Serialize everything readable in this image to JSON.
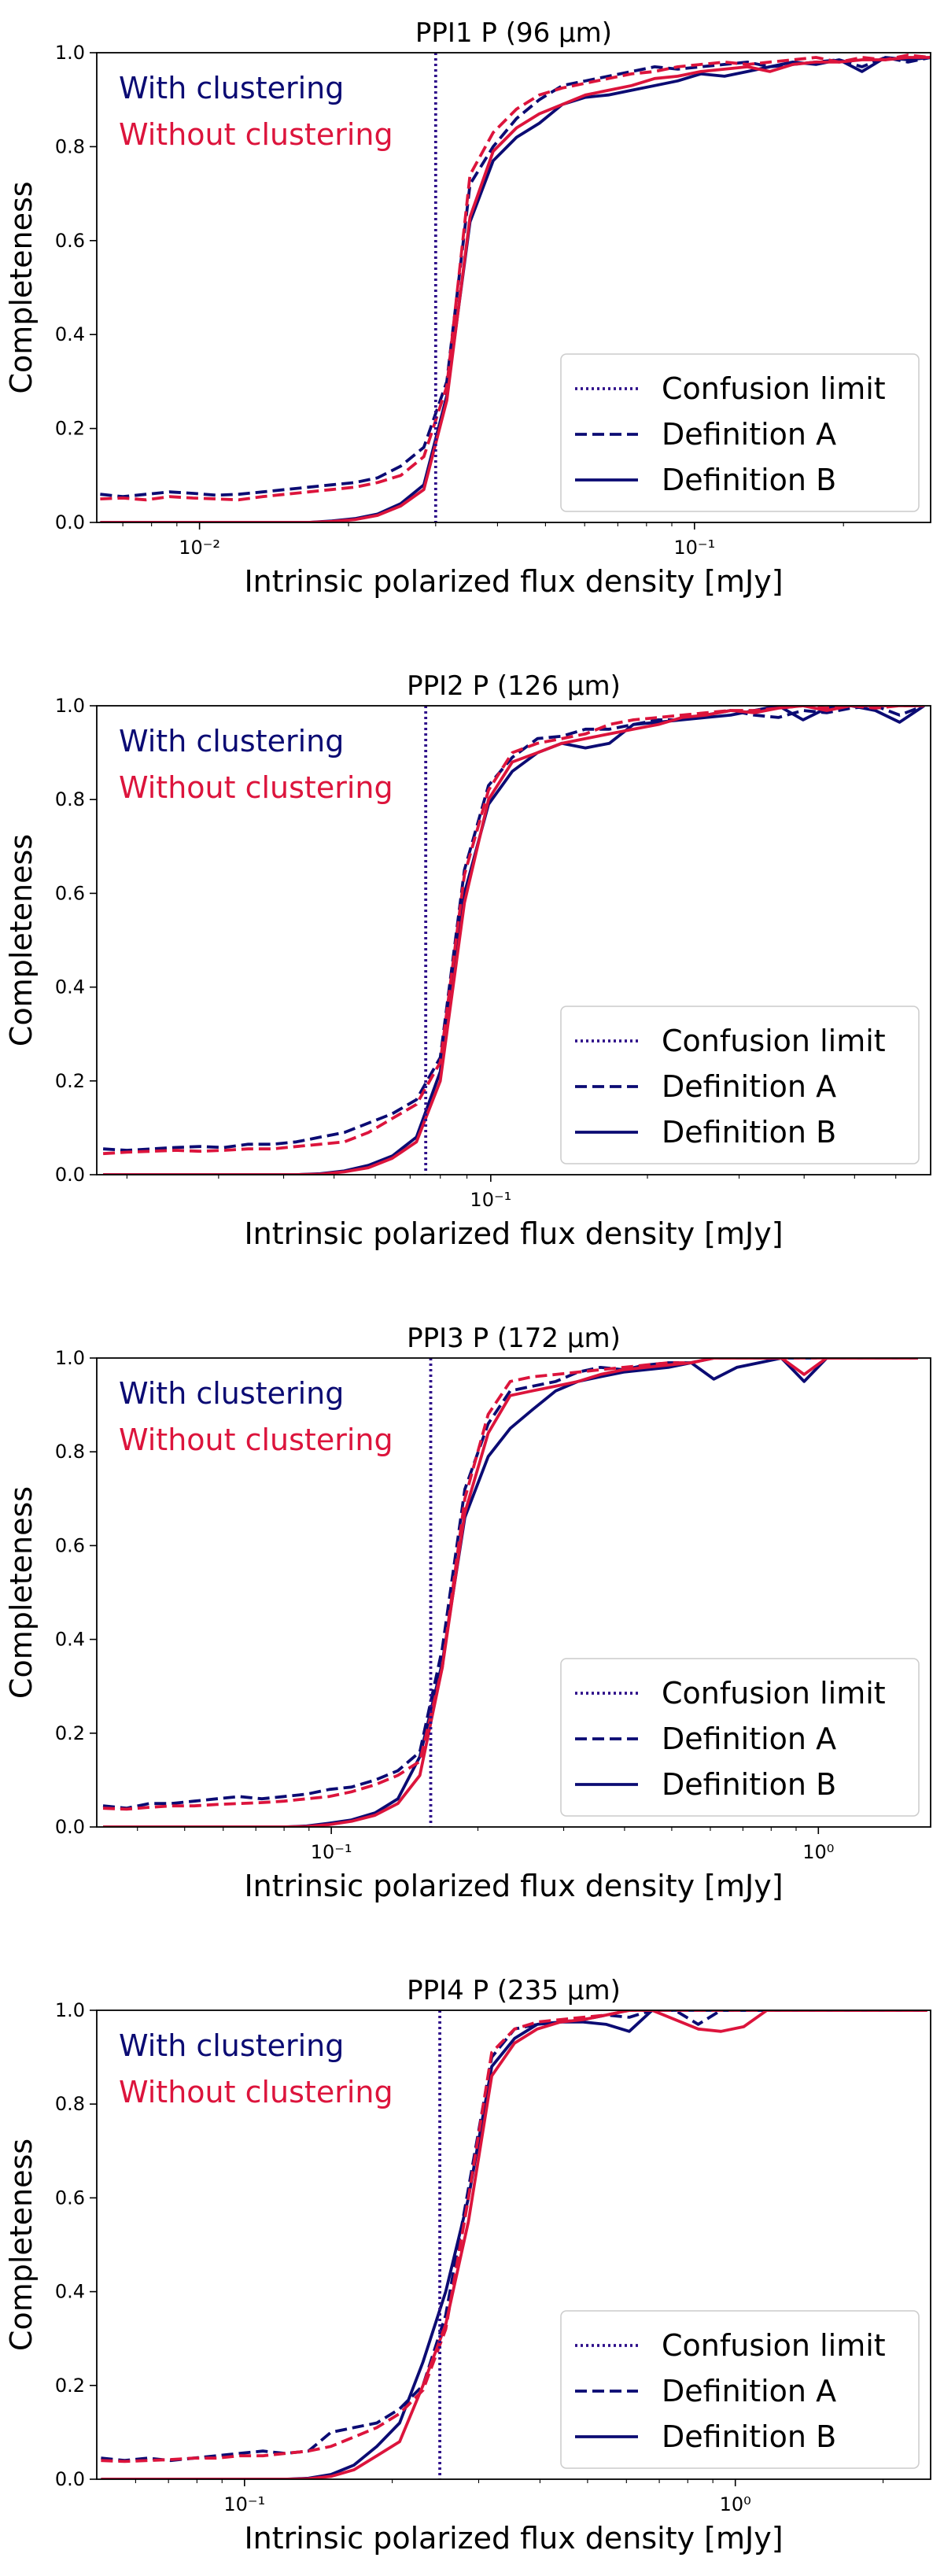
{
  "colors": {
    "with_clustering": "#0b0b73",
    "without_clustering": "#dc143c",
    "confusion_limit": "#2e0f8a"
  },
  "chart_data": [
    {
      "type": "line",
      "title": "PPI1 P (96 μm)",
      "xlabel": "Intrinsic polarized flux density [mJy]",
      "ylabel": "Completeness",
      "xscale": "log",
      "xlim": [
        0.0062,
        0.3
      ],
      "ylim": [
        0,
        1
      ],
      "yticks": [
        "0.0",
        "0.2",
        "0.4",
        "0.6",
        "0.8",
        "1.0"
      ],
      "xticks": [
        {
          "value": 0.01,
          "label": "10⁻²"
        },
        {
          "value": 0.1,
          "label": "10⁻¹"
        }
      ],
      "confusion_limit": 0.03,
      "annotations": [
        "With clustering",
        "Without clustering"
      ],
      "legend": [
        "Confusion limit",
        "Definition A",
        "Definition B"
      ],
      "x": [
        0.0063,
        0.007,
        0.0078,
        0.0087,
        0.0097,
        0.0108,
        0.012,
        0.0134,
        0.0149,
        0.0166,
        0.0185,
        0.0206,
        0.0229,
        0.0255,
        0.0284,
        0.0316,
        0.0352,
        0.0392,
        0.0437,
        0.0486,
        0.0541,
        0.0602,
        0.067,
        0.0746,
        0.0831,
        0.0925,
        0.103,
        0.115,
        0.128,
        0.142,
        0.158,
        0.176,
        0.196,
        0.218,
        0.243,
        0.27,
        0.3
      ],
      "series": [
        {
          "name": "With clustering – Definition A",
          "group": "with",
          "style": "dashed",
          "values": [
            0.06,
            0.055,
            0.06,
            0.065,
            0.062,
            0.058,
            0.06,
            0.065,
            0.07,
            0.075,
            0.08,
            0.085,
            0.095,
            0.12,
            0.16,
            0.3,
            0.72,
            0.8,
            0.86,
            0.9,
            0.93,
            0.94,
            0.95,
            0.96,
            0.97,
            0.965,
            0.97,
            0.975,
            0.98,
            0.97,
            0.975,
            0.98,
            0.985,
            0.97,
            0.99,
            0.98,
            0.99
          ]
        },
        {
          "name": "With clustering – Definition B",
          "group": "with",
          "style": "solid",
          "values": [
            0.0,
            0.0,
            0.0,
            0.0,
            0.0,
            0.0,
            0.0,
            0.0,
            0.0,
            0.0,
            0.003,
            0.008,
            0.018,
            0.04,
            0.08,
            0.27,
            0.64,
            0.77,
            0.82,
            0.85,
            0.89,
            0.905,
            0.91,
            0.92,
            0.93,
            0.94,
            0.955,
            0.95,
            0.96,
            0.97,
            0.98,
            0.975,
            0.985,
            0.96,
            0.99,
            0.985,
            0.99
          ]
        },
        {
          "name": "Without clustering – Definition A",
          "group": "without",
          "style": "dashed",
          "values": [
            0.05,
            0.052,
            0.048,
            0.055,
            0.052,
            0.05,
            0.048,
            0.055,
            0.06,
            0.065,
            0.07,
            0.075,
            0.085,
            0.1,
            0.14,
            0.29,
            0.74,
            0.83,
            0.88,
            0.91,
            0.925,
            0.935,
            0.945,
            0.955,
            0.96,
            0.97,
            0.975,
            0.98,
            0.975,
            0.98,
            0.985,
            0.99,
            0.98,
            0.99,
            0.985,
            0.995,
            0.99
          ]
        },
        {
          "name": "Without clustering – Definition B",
          "group": "without",
          "style": "solid",
          "values": [
            0.0,
            0.0,
            0.0,
            0.0,
            0.0,
            0.0,
            0.0,
            0.0,
            0.0,
            0.0,
            0.002,
            0.006,
            0.015,
            0.035,
            0.07,
            0.26,
            0.65,
            0.79,
            0.84,
            0.87,
            0.89,
            0.91,
            0.92,
            0.93,
            0.945,
            0.95,
            0.96,
            0.965,
            0.97,
            0.96,
            0.975,
            0.98,
            0.98,
            0.985,
            0.985,
            0.99,
            0.99
          ]
        }
      ]
    },
    {
      "type": "line",
      "title": "PPI2 P (126 μm)",
      "xlabel": "Intrinsic polarized flux density [mJy]",
      "ylabel": "Completeness",
      "xscale": "log",
      "xlim": [
        0.0175,
        0.7
      ],
      "ylim": [
        0,
        1
      ],
      "yticks": [
        "0.0",
        "0.2",
        "0.4",
        "0.6",
        "0.8",
        "1.0"
      ],
      "xticks": [
        {
          "value": 0.1,
          "label": "10⁻¹"
        }
      ],
      "confusion_limit": 0.075,
      "annotations": [
        "With clustering",
        "Without clustering"
      ],
      "legend": [
        "Confusion limit",
        "Definition A",
        "Definition B"
      ],
      "x": [
        0.018,
        0.02,
        0.0223,
        0.0248,
        0.0276,
        0.0307,
        0.0342,
        0.038,
        0.0423,
        0.047,
        0.0523,
        0.0582,
        0.0647,
        0.072,
        0.08,
        0.089,
        0.099,
        0.11,
        0.123,
        0.137,
        0.152,
        0.169,
        0.188,
        0.21,
        0.233,
        0.259,
        0.289,
        0.321,
        0.357,
        0.398,
        0.442,
        0.492,
        0.548,
        0.61,
        0.68
      ],
      "series": [
        {
          "name": "With clustering – Definition A",
          "group": "with",
          "style": "dashed",
          "values": [
            0.055,
            0.052,
            0.055,
            0.058,
            0.06,
            0.058,
            0.065,
            0.065,
            0.07,
            0.08,
            0.09,
            0.11,
            0.13,
            0.16,
            0.25,
            0.65,
            0.83,
            0.89,
            0.93,
            0.935,
            0.95,
            0.95,
            0.96,
            0.97,
            0.97,
            0.98,
            0.99,
            0.98,
            0.975,
            0.99,
            0.985,
            0.995,
            1.0,
            0.98,
            1.0
          ]
        },
        {
          "name": "With clustering – Definition B",
          "group": "with",
          "style": "solid",
          "values": [
            0.0,
            0.0,
            0.0,
            0.0,
            0.0,
            0.0,
            0.0,
            0.0,
            0.0,
            0.002,
            0.008,
            0.02,
            0.04,
            0.08,
            0.22,
            0.6,
            0.79,
            0.86,
            0.9,
            0.92,
            0.91,
            0.92,
            0.96,
            0.965,
            0.97,
            0.975,
            0.98,
            0.99,
            1.0,
            0.97,
            0.995,
            1.0,
            0.99,
            0.965,
            1.0
          ]
        },
        {
          "name": "Without clustering – Definition A",
          "group": "without",
          "style": "dashed",
          "values": [
            0.045,
            0.048,
            0.05,
            0.052,
            0.05,
            0.052,
            0.055,
            0.055,
            0.06,
            0.065,
            0.07,
            0.09,
            0.12,
            0.15,
            0.24,
            0.64,
            0.82,
            0.9,
            0.92,
            0.93,
            0.94,
            0.96,
            0.97,
            0.975,
            0.98,
            0.985,
            0.99,
            0.99,
            0.995,
            1.0,
            0.995,
            1.0,
            0.995,
            1.0,
            1.0
          ]
        },
        {
          "name": "Without clustering – Definition B",
          "group": "without",
          "style": "solid",
          "values": [
            0.0,
            0.0,
            0.0,
            0.0,
            0.0,
            0.0,
            0.0,
            0.0,
            0.0,
            0.001,
            0.006,
            0.015,
            0.035,
            0.07,
            0.2,
            0.58,
            0.8,
            0.88,
            0.9,
            0.92,
            0.93,
            0.94,
            0.95,
            0.96,
            0.975,
            0.98,
            0.99,
            0.985,
            0.995,
            1.0,
            0.99,
            1.0,
            1.0,
            1.0,
            1.0
          ]
        }
      ]
    },
    {
      "type": "line",
      "title": "PPI3 P (172 μm)",
      "xlabel": "Intrinsic polarized flux density [mJy]",
      "ylabel": "Completeness",
      "xscale": "log",
      "xlim": [
        0.033,
        1.7
      ],
      "ylim": [
        0,
        1
      ],
      "yticks": [
        "0.0",
        "0.2",
        "0.4",
        "0.6",
        "0.8",
        "1.0"
      ],
      "xticks": [
        {
          "value": 0.1,
          "label": "10⁻¹"
        },
        {
          "value": 1.0,
          "label": "10⁰"
        }
      ],
      "confusion_limit": 0.16,
      "annotations": [
        "With clustering",
        "Without clustering"
      ],
      "legend": [
        "Confusion limit",
        "Definition A",
        "Definition B"
      ],
      "x": [
        0.034,
        0.038,
        0.0423,
        0.047,
        0.0523,
        0.0582,
        0.0647,
        0.072,
        0.08,
        0.089,
        0.099,
        0.11,
        0.123,
        0.137,
        0.152,
        0.169,
        0.188,
        0.21,
        0.233,
        0.259,
        0.289,
        0.321,
        0.357,
        0.398,
        0.442,
        0.492,
        0.548,
        0.61,
        0.68,
        0.756,
        0.84,
        0.935,
        1.04,
        1.16,
        1.29,
        1.44,
        1.6
      ],
      "series": [
        {
          "name": "With clustering – Definition A",
          "group": "with",
          "style": "dashed",
          "values": [
            0.045,
            0.04,
            0.05,
            0.05,
            0.055,
            0.06,
            0.065,
            0.06,
            0.065,
            0.07,
            0.08,
            0.085,
            0.1,
            0.12,
            0.16,
            0.38,
            0.72,
            0.86,
            0.93,
            0.94,
            0.95,
            0.97,
            0.98,
            0.975,
            0.985,
            0.99,
            0.99,
            1.0,
            1.0,
            1.0,
            1.0,
            1.0,
            1.0,
            1.0,
            1.0,
            1.0,
            1.0
          ]
        },
        {
          "name": "With clustering – Definition B",
          "group": "with",
          "style": "solid",
          "values": [
            0.0,
            0.0,
            0.0,
            0.0,
            0.0,
            0.0,
            0.0,
            0.0,
            0.0,
            0.002,
            0.008,
            0.015,
            0.03,
            0.06,
            0.15,
            0.35,
            0.66,
            0.79,
            0.85,
            0.89,
            0.93,
            0.95,
            0.96,
            0.97,
            0.975,
            0.98,
            0.99,
            0.955,
            0.98,
            0.99,
            1.0,
            0.95,
            1.0,
            1.0,
            1.0,
            1.0,
            1.0
          ]
        },
        {
          "name": "Without clustering – Definition A",
          "group": "without",
          "style": "dashed",
          "values": [
            0.04,
            0.038,
            0.042,
            0.045,
            0.045,
            0.048,
            0.05,
            0.052,
            0.055,
            0.06,
            0.065,
            0.075,
            0.09,
            0.11,
            0.14,
            0.34,
            0.7,
            0.88,
            0.95,
            0.96,
            0.965,
            0.97,
            0.975,
            0.98,
            0.985,
            0.99,
            0.99,
            1.0,
            1.0,
            1.0,
            1.0,
            1.0,
            1.0,
            1.0,
            1.0,
            1.0,
            1.0
          ]
        },
        {
          "name": "Without clustering – Definition B",
          "group": "without",
          "style": "solid",
          "values": [
            0.0,
            0.0,
            0.0,
            0.0,
            0.0,
            0.0,
            0.0,
            0.0,
            0.0,
            0.001,
            0.005,
            0.012,
            0.025,
            0.05,
            0.11,
            0.34,
            0.67,
            0.84,
            0.92,
            0.93,
            0.94,
            0.95,
            0.965,
            0.975,
            0.98,
            0.985,
            0.99,
            1.0,
            1.0,
            1.0,
            1.0,
            0.965,
            1.0,
            1.0,
            1.0,
            1.0,
            1.0
          ]
        }
      ]
    },
    {
      "type": "line",
      "title": "PPI4 P (235 μm)",
      "xlabel": "Intrinsic polarized flux density [mJy]",
      "ylabel": "Completeness",
      "xscale": "log",
      "xlim": [
        0.05,
        2.5
      ],
      "ylim": [
        0,
        1
      ],
      "yticks": [
        "0.0",
        "0.2",
        "0.4",
        "0.6",
        "0.8",
        "1.0"
      ],
      "xticks": [
        {
          "value": 0.1,
          "label": "10⁻¹"
        },
        {
          "value": 1.0,
          "label": "10⁰"
        }
      ],
      "confusion_limit": 0.25,
      "annotations": [
        "With clustering",
        "Without clustering"
      ],
      "legend": [
        "Confusion limit",
        "Definition A",
        "Definition B"
      ],
      "x": [
        0.051,
        0.057,
        0.0635,
        0.0707,
        0.0788,
        0.0877,
        0.0977,
        0.109,
        0.121,
        0.135,
        0.15,
        0.167,
        0.186,
        0.207,
        0.231,
        0.257,
        0.286,
        0.319,
        0.355,
        0.395,
        0.44,
        0.49,
        0.546,
        0.608,
        0.677,
        0.754,
        0.84,
        0.935,
        1.04,
        1.16,
        1.29,
        1.44,
        1.6,
        1.78,
        1.99,
        2.21,
        2.46
      ],
      "series": [
        {
          "name": "With clustering – Definition A",
          "group": "with",
          "style": "dashed",
          "values": [
            0.045,
            0.04,
            0.045,
            0.04,
            0.045,
            0.05,
            0.055,
            0.06,
            0.055,
            0.06,
            0.1,
            0.11,
            0.12,
            0.15,
            0.2,
            0.35,
            0.62,
            0.9,
            0.96,
            0.97,
            0.975,
            0.98,
            0.99,
            0.985,
            1.0,
            1.0,
            0.97,
            1.0,
            1.0,
            1.0,
            1.0,
            1.0,
            1.0,
            1.0,
            1.0,
            1.0,
            1.0
          ]
        },
        {
          "name": "With clustering – Definition B",
          "group": "with",
          "style": "solid",
          "values": [
            0.0,
            0.0,
            0.0,
            0.0,
            0.0,
            0.0,
            0.0,
            0.0,
            0.0,
            0.002,
            0.01,
            0.03,
            0.07,
            0.12,
            0.25,
            0.4,
            0.6,
            0.88,
            0.94,
            0.97,
            0.975,
            0.975,
            0.97,
            0.955,
            1.0,
            1.0,
            1.0,
            1.0,
            1.0,
            1.0,
            1.0,
            1.0,
            1.0,
            1.0,
            1.0,
            1.0,
            1.0
          ]
        },
        {
          "name": "Without clustering – Definition A",
          "group": "without",
          "style": "dashed",
          "values": [
            0.04,
            0.038,
            0.04,
            0.042,
            0.045,
            0.045,
            0.05,
            0.05,
            0.055,
            0.06,
            0.07,
            0.09,
            0.11,
            0.14,
            0.19,
            0.32,
            0.6,
            0.91,
            0.96,
            0.975,
            0.98,
            0.985,
            0.99,
            1.0,
            1.0,
            1.0,
            1.0,
            1.0,
            1.0,
            1.0,
            1.0,
            1.0,
            1.0,
            1.0,
            1.0,
            1.0,
            1.0
          ]
        },
        {
          "name": "Without clustering – Definition B",
          "group": "without",
          "style": "solid",
          "values": [
            0.0,
            0.0,
            0.0,
            0.0,
            0.0,
            0.0,
            0.0,
            0.0,
            0.0,
            0.001,
            0.006,
            0.02,
            0.05,
            0.08,
            0.2,
            0.33,
            0.55,
            0.86,
            0.93,
            0.96,
            0.975,
            0.98,
            0.99,
            1.0,
            1.0,
            0.98,
            0.96,
            0.955,
            0.965,
            1.0,
            1.0,
            1.0,
            1.0,
            1.0,
            1.0,
            1.0,
            1.0
          ]
        }
      ]
    }
  ]
}
